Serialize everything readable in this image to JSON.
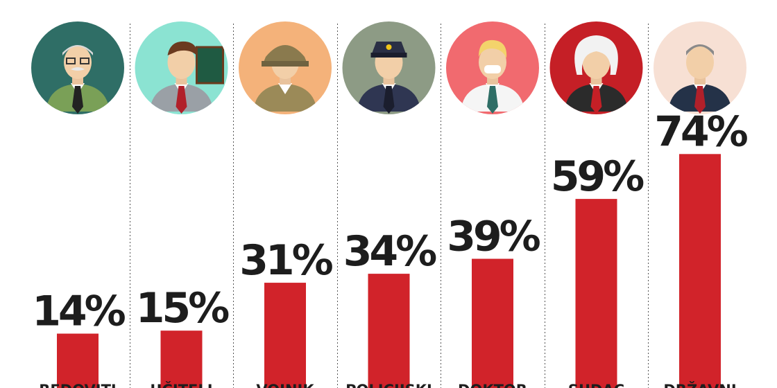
{
  "chart_data": {
    "type": "bar",
    "title": "",
    "xlabel": "",
    "ylabel": "",
    "categories": [
      "REDOVITI",
      "UČITELJ",
      "VOJNIK",
      "POLICIJSKI",
      "DOKTOR",
      "SUDAC",
      "DRŽAVNI"
    ],
    "values": [
      14,
      15,
      31,
      34,
      39,
      59,
      74
    ],
    "value_labels": [
      "14%",
      "15%",
      "31%",
      "34%",
      "39%",
      "59%",
      "74%"
    ],
    "unit": "%",
    "icons": [
      "professor-avatar-icon",
      "teacher-avatar-icon",
      "soldier-avatar-icon",
      "police-officer-avatar-icon",
      "doctor-avatar-icon",
      "judge-avatar-icon",
      "politician-avatar-icon"
    ],
    "icon_bg_colors": [
      "#2f6e66",
      "#8be3d2",
      "#f4b27a",
      "#8d9b85",
      "#f16a6f",
      "#c51f26",
      "#f7e0d4"
    ],
    "bar_color": "#d1232a",
    "grid": false,
    "legend": "none"
  }
}
